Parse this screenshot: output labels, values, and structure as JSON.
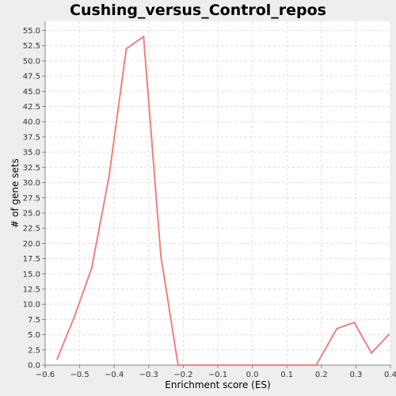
{
  "chart_data": {
    "type": "line",
    "title": "Cushing_versus_Control_repos",
    "xlabel": "Enrichment score (ES)",
    "ylabel": "# of gene sets",
    "xlim": [
      -0.6,
      0.4
    ],
    "ylim": [
      0,
      56.5
    ],
    "x_ticks": [
      -0.6,
      -0.5,
      -0.4,
      -0.3,
      -0.2,
      -0.1,
      0.0,
      0.1,
      0.2,
      0.3,
      0.4
    ],
    "x_tick_labels": [
      "−0.6",
      "−0.5",
      "−0.4",
      "−0.3",
      "−0.2",
      "−0.1",
      "0.0",
      "0.1",
      "0.2",
      "0.3",
      "0.4"
    ],
    "y_ticks": [
      0,
      2.5,
      5,
      7.5,
      10,
      12.5,
      15,
      17.5,
      20,
      22.5,
      25,
      27.5,
      30,
      32.5,
      35,
      37.5,
      40,
      42.5,
      45,
      47.5,
      50,
      52.5,
      55
    ],
    "y_tick_labels": [
      "0.0",
      "2.5",
      "5.0",
      "7.5",
      "10.0",
      "12.5",
      "15.0",
      "17.5",
      "20.0",
      "22.5",
      "25.0",
      "27.5",
      "30.0",
      "32.5",
      "35.0",
      "37.5",
      "40.0",
      "42.5",
      "45.0",
      "47.5",
      "50.0",
      "52.5",
      "55.0"
    ],
    "grid": true,
    "series": [
      {
        "color": "#f08080",
        "x": [
          -0.565,
          -0.515,
          -0.465,
          -0.415,
          -0.365,
          -0.315,
          -0.265,
          -0.215,
          -0.165,
          -0.115,
          -0.065,
          -0.015,
          0.035,
          0.085,
          0.135,
          0.185,
          0.245,
          0.295,
          0.345,
          0.395
        ],
        "y": [
          1,
          8,
          16,
          31,
          52,
          54,
          18,
          0,
          0,
          0,
          0,
          0,
          0,
          0,
          0,
          0,
          6,
          7,
          2,
          5
        ]
      }
    ]
  }
}
